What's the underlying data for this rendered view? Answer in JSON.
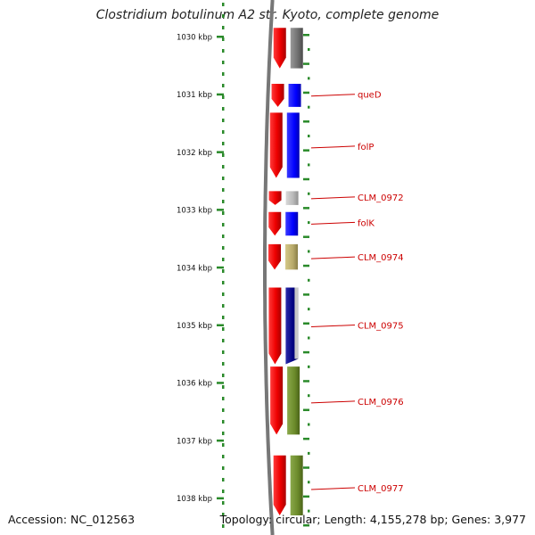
{
  "title": "Clostridium botulinum A2 str. Kyoto, complete genome",
  "accession": "Accession: NC_012563",
  "summary": "Topology: circular; Length: 4,155,278 bp; Genes: 3,977",
  "ruler": {
    "unit": "kbp",
    "ticks": [
      {
        "kbp": 1030,
        "label": "1030 kbp"
      },
      {
        "kbp": 1031,
        "label": "1031 kbp"
      },
      {
        "kbp": 1032,
        "label": "1032 kbp"
      },
      {
        "kbp": 1033,
        "label": "1033 kbp"
      },
      {
        "kbp": 1034,
        "label": "1034 kbp"
      },
      {
        "kbp": 1035,
        "label": "1035 kbp"
      },
      {
        "kbp": 1036,
        "label": "1036 kbp"
      },
      {
        "kbp": 1037,
        "label": "1037 kbp"
      },
      {
        "kbp": 1038,
        "label": "1038 kbp"
      }
    ]
  },
  "colors": {
    "cds_track": "#ff0000",
    "label": "#cc0000",
    "tick": "#2a8a2a",
    "backbone": "#777777",
    "gene_gray": "#6f6f6f",
    "gene_blue": "#0000ff",
    "gene_light_gray": "#b8b8b8",
    "gene_khaki": "#b8aa6a",
    "gene_navy": "#000080",
    "gene_olive": "#6b8a2a"
  },
  "genes": [
    {
      "name": "",
      "start_kbp": 1029.85,
      "end_kbp": 1030.55,
      "color": "gene_gray",
      "label_kbp": null
    },
    {
      "name": "queD",
      "start_kbp": 1030.82,
      "end_kbp": 1031.22,
      "color": "gene_blue",
      "label_kbp": 1031.0
    },
    {
      "name": "folP",
      "start_kbp": 1031.32,
      "end_kbp": 1032.45,
      "color": "gene_blue",
      "label_kbp": 1031.9
    },
    {
      "name": "CLM_0972",
      "start_kbp": 1032.68,
      "end_kbp": 1032.92,
      "color": "gene_light_gray",
      "label_kbp": 1032.78
    },
    {
      "name": "folK",
      "start_kbp": 1033.04,
      "end_kbp": 1033.45,
      "color": "gene_blue",
      "label_kbp": 1033.22
    },
    {
      "name": "CLM_0974",
      "start_kbp": 1033.6,
      "end_kbp": 1034.04,
      "color": "gene_khaki",
      "label_kbp": 1033.82
    },
    {
      "name": "CLM_0975",
      "start_kbp": 1034.35,
      "end_kbp": 1035.68,
      "color": "gene_navy",
      "label_kbp": 1035.0
    },
    {
      "name": "CLM_0976",
      "start_kbp": 1035.72,
      "end_kbp": 1036.9,
      "color": "gene_olive",
      "label_kbp": 1036.32
    },
    {
      "name": "CLM_0977",
      "start_kbp": 1037.26,
      "end_kbp": 1038.3,
      "color": "gene_olive",
      "label_kbp": 1037.82
    }
  ]
}
